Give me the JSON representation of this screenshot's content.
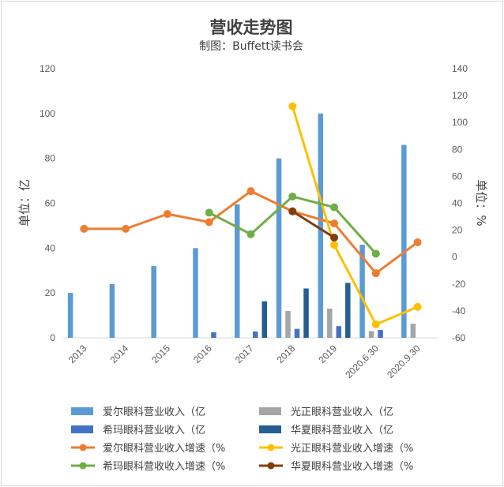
{
  "chart_data": {
    "type": "bar+line",
    "title": "营收走势图",
    "subtitle": "制图：Buffett读书会",
    "ylabel_left": "单位：亿",
    "ylabel_right": "单位：%",
    "ylim_left": [
      0,
      120
    ],
    "yticks_left": [
      0,
      20,
      40,
      60,
      80,
      100,
      120
    ],
    "ylim_right": [
      -60,
      140
    ],
    "yticks_right": [
      -60,
      -40,
      -20,
      0,
      20,
      40,
      60,
      80,
      100,
      120,
      140
    ],
    "grid": false,
    "legend_position": "bottom",
    "categories": [
      "2013",
      "2014",
      "2015",
      "2016",
      "2017",
      "2018",
      "2019",
      "2020.6.30",
      "2020.9.30"
    ],
    "bar_series": [
      {
        "name": "爱尔眼科营业收入（亿",
        "color": "#5b9bd5",
        "values": [
          20,
          24,
          32,
          40,
          59.5,
          80,
          100,
          41.5,
          86
        ]
      },
      {
        "name": "光正眼科营业收入（亿",
        "color": "#a5a5a5",
        "values": [
          null,
          null,
          null,
          null,
          null,
          12,
          13,
          3,
          6.3
        ]
      },
      {
        "name": "希玛眼科营业收入（亿",
        "color": "#4472c4",
        "values": [
          null,
          null,
          null,
          2.5,
          2.8,
          4,
          5.2,
          3.5,
          null
        ]
      },
      {
        "name": "华夏眼科营业收入（亿",
        "color": "#255e91",
        "values": [
          null,
          null,
          null,
          null,
          16.3,
          22,
          24.5,
          null,
          null
        ]
      }
    ],
    "line_series": [
      {
        "name": "爱尔眼科营业收入增速（%",
        "color": "#ed7d31",
        "values": [
          21,
          21,
          32,
          26,
          49,
          34,
          25,
          -12,
          11
        ]
      },
      {
        "name": "光正眼科营业收入增速（%",
        "color": "#ffc000",
        "values": [
          null,
          null,
          null,
          null,
          null,
          112,
          9,
          -50,
          -37
        ]
      },
      {
        "name": "希玛眼科营收收入增速（%",
        "color": "#70ad47",
        "values": [
          null,
          null,
          null,
          33,
          17,
          45,
          37,
          2.5,
          null
        ]
      },
      {
        "name": "华夏眼科营业收入增速（%",
        "color": "#843c0c",
        "values": [
          null,
          null,
          null,
          null,
          null,
          34,
          14.5,
          null,
          null
        ]
      }
    ]
  }
}
